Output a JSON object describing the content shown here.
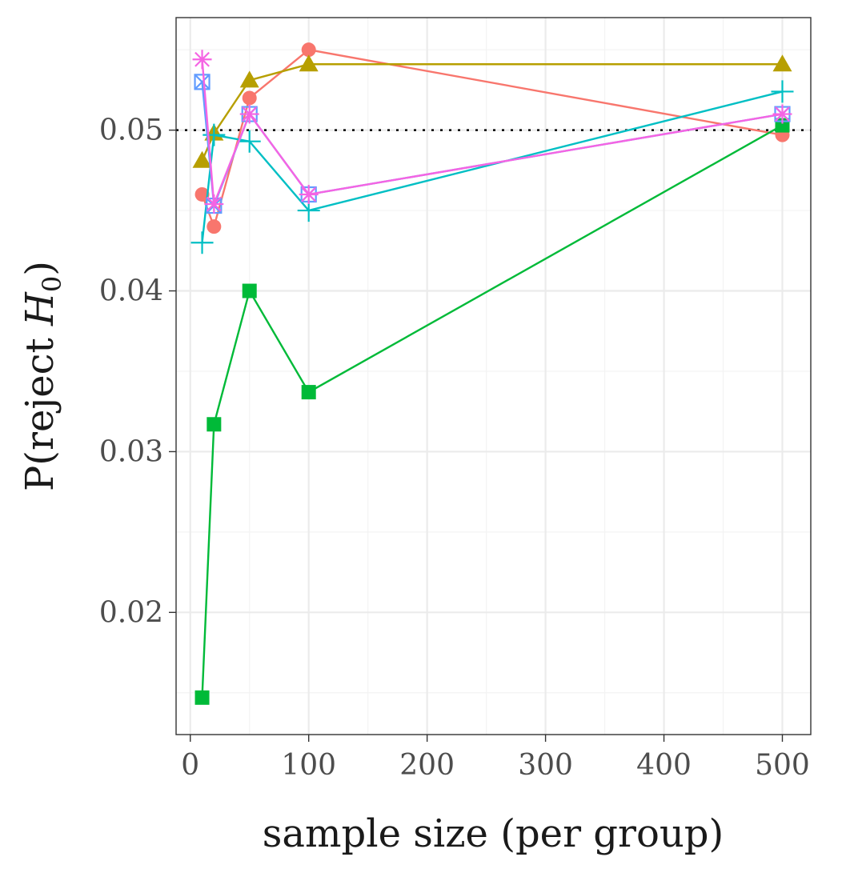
{
  "chart_data": {
    "type": "line",
    "title": "",
    "xlabel": "sample size (per group)",
    "ylabel_main": "P(reject ",
    "ylabel_var": "H",
    "ylabel_sub": "0",
    "ylabel_close": ")",
    "xlim": [
      -12,
      524
    ],
    "ylim": [
      0.0124,
      0.057
    ],
    "x_ticks": [
      0,
      100,
      200,
      300,
      400,
      500
    ],
    "x_tick_labels": [
      "0",
      "100",
      "200",
      "300",
      "400",
      "500"
    ],
    "x_minor": [
      50,
      150,
      250,
      350,
      450
    ],
    "y_ticks": [
      0.02,
      0.03,
      0.04,
      0.05
    ],
    "y_tick_labels": [
      "0.02",
      "0.03",
      "0.04",
      "0.05"
    ],
    "y_minor": [
      0.015,
      0.025,
      0.035,
      0.045,
      0.055
    ],
    "reference_line": 0.05,
    "grid": true,
    "x": [
      10,
      20,
      50,
      100,
      500
    ],
    "series": [
      {
        "color": "#F8766D",
        "marker": "circle",
        "values": [
          0.046,
          0.044,
          0.052,
          0.055,
          0.0497
        ]
      },
      {
        "color": "#B79F00",
        "marker": "triangle",
        "values": [
          0.0481,
          0.0498,
          0.0531,
          0.0541,
          0.0541
        ]
      },
      {
        "color": "#00BA38",
        "marker": "square",
        "values": [
          0.0147,
          0.0317,
          0.04,
          0.0337,
          0.0503
        ]
      },
      {
        "color": "#00BFC4",
        "marker": "plus",
        "values": [
          0.043,
          0.0497,
          0.0493,
          0.045,
          0.0524
        ]
      },
      {
        "color": "#619CFF",
        "marker": "boxed-x",
        "values": [
          0.053,
          0.0453,
          0.051,
          0.046,
          0.051
        ]
      },
      {
        "color": "#F564E3",
        "marker": "asterisk",
        "values": [
          0.0544,
          0.0454,
          0.051,
          0.046,
          0.051
        ]
      }
    ]
  }
}
